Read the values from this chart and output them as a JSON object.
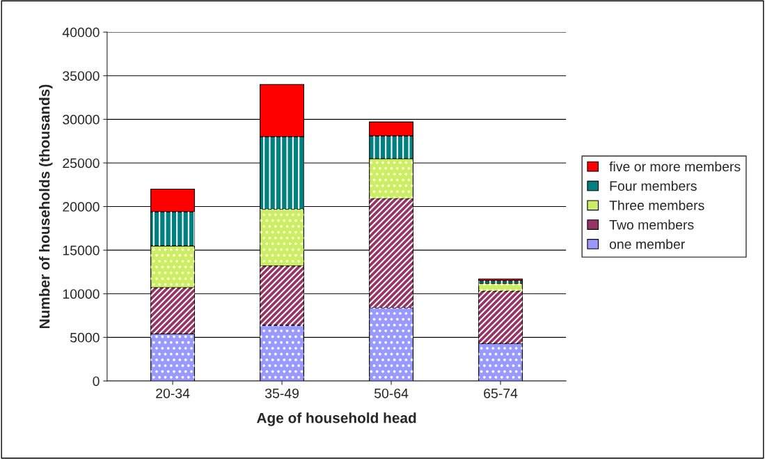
{
  "chart_data": {
    "type": "bar",
    "stacked": true,
    "xlabel": "Age of household head",
    "ylabel": "Number of households (thousands)",
    "categories": [
      "20-34",
      "35-49",
      "50-64",
      "65-74"
    ],
    "series": [
      {
        "name": "one member",
        "color": "#9999ff",
        "values": [
          5400,
          6400,
          8400,
          4300
        ]
      },
      {
        "name": "Two members",
        "color": "#993366",
        "values": [
          5300,
          6800,
          12500,
          6000
        ]
      },
      {
        "name": "Three members",
        "color": "#ccee66",
        "values": [
          4800,
          6500,
          4600,
          900
        ]
      },
      {
        "name": "Four members",
        "color": "#008080",
        "values": [
          3900,
          8300,
          2600,
          300
        ]
      },
      {
        "name": "five or more members",
        "color": "#ff0000",
        "values": [
          2600,
          6000,
          1600,
          200
        ]
      }
    ],
    "ylim": [
      0,
      40000
    ],
    "yticks": [
      0,
      5000,
      10000,
      15000,
      20000,
      25000,
      30000,
      35000,
      40000
    ],
    "grid": "y",
    "legend": "right"
  }
}
